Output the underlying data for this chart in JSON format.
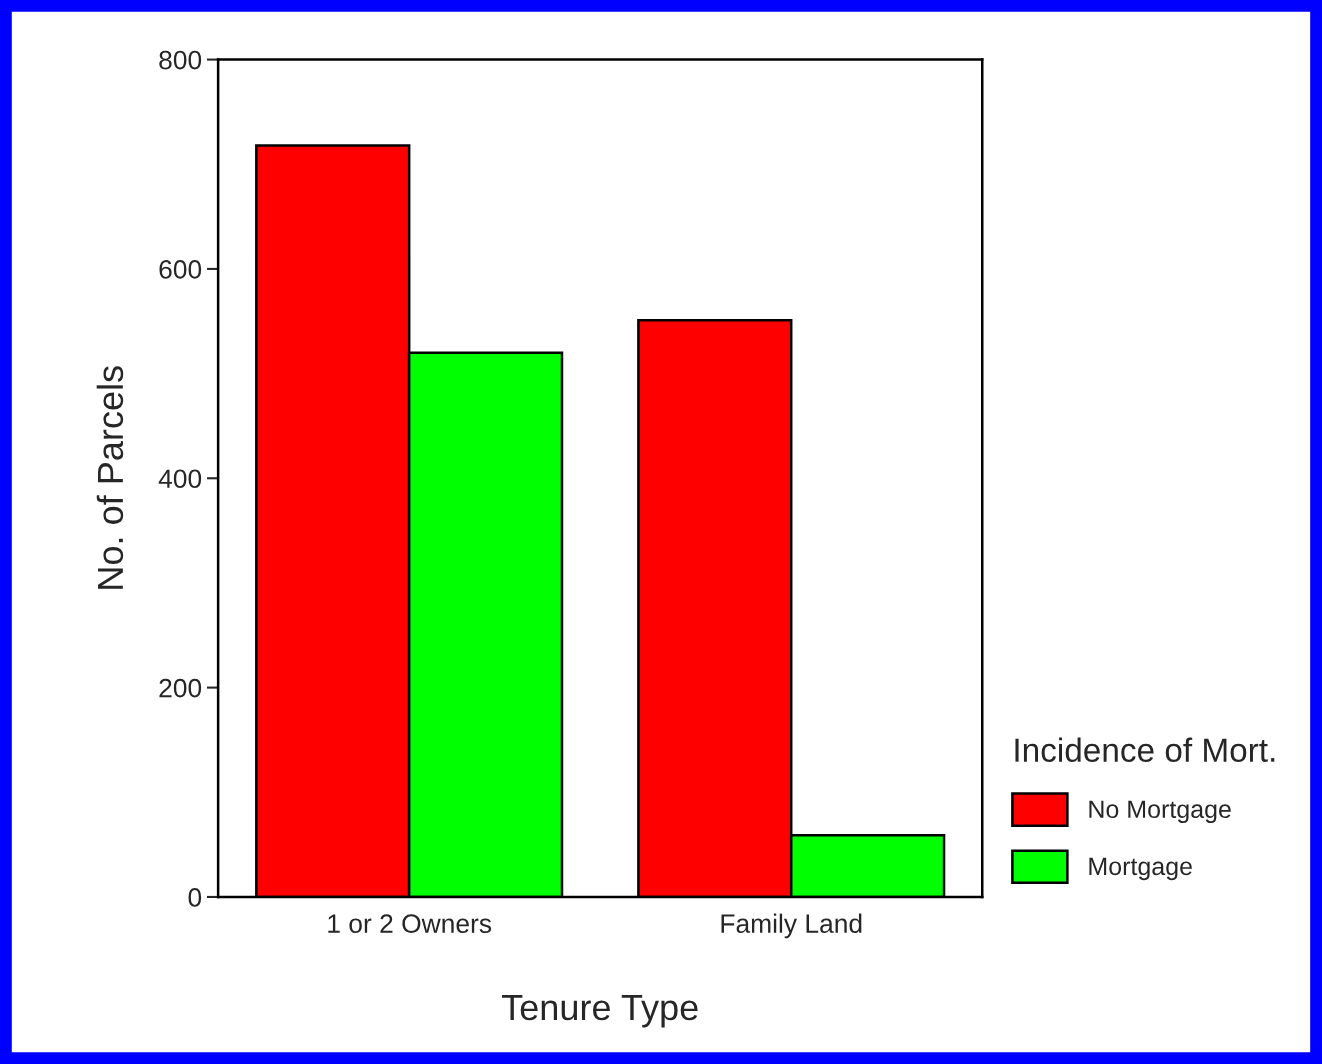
{
  "chart_data": {
    "type": "bar",
    "xlabel": "Tenure Type",
    "ylabel": "No. of Parcels",
    "legend_title": "Incidence of Mort.",
    "categories": [
      "1 or 2 Owners",
      "Family Land"
    ],
    "series": [
      {
        "name": "No Mortgage",
        "color": "#ff0000",
        "values": [
          718,
          551
        ]
      },
      {
        "name": "Mortgage",
        "color": "#00ff00",
        "values": [
          520,
          59
        ]
      }
    ],
    "ylim": [
      0,
      800
    ],
    "yticks": [
      0,
      200,
      400,
      600,
      800
    ],
    "grid": false,
    "legend": "bottom right"
  }
}
